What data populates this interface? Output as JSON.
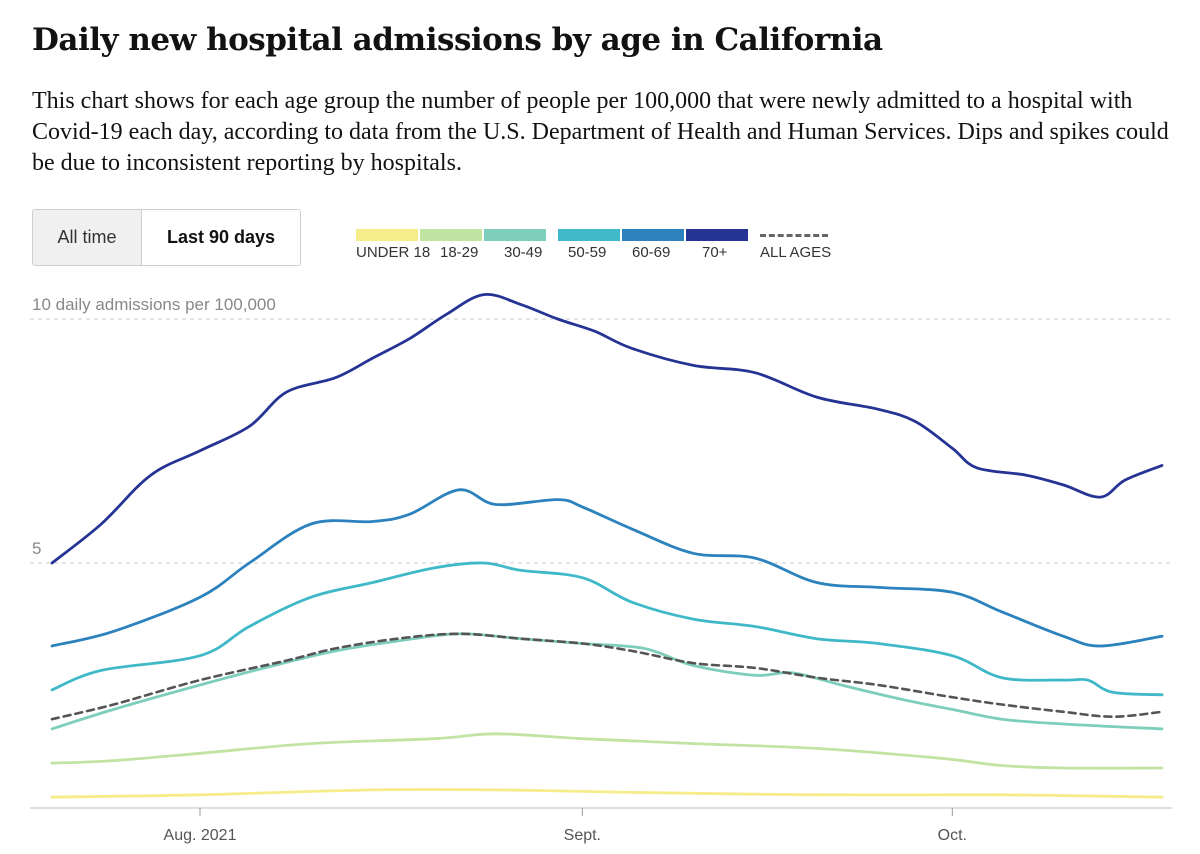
{
  "title": "Daily new hospital admissions by age in California",
  "subtitle": "This chart shows for each age group the number of people per 100,000 that were newly admitted to a hospital with Covid-19 each day, according to data from the U.S. Department of Health and Human Services. Dips and spikes could be due to inconsistent reporting by hospitals.",
  "toggle": {
    "all_time": "All time",
    "last_90": "Last 90 days",
    "selected": "last_90"
  },
  "chart_data": {
    "type": "line",
    "title": "Daily new hospital admissions by age in California",
    "ylabel_annotation": "10 daily admissions per 100,000",
    "y_ticks": [
      {
        "value": 10,
        "label": "10 daily admissions per 100,000"
      },
      {
        "value": 5,
        "label": "5"
      }
    ],
    "ylim": [
      0,
      10.8
    ],
    "x_range": [
      "2021-07-20",
      "2021-10-18"
    ],
    "x_ticks": [
      {
        "date": "2021-08-01",
        "label": "Aug. 2021"
      },
      {
        "date": "2021-09-01",
        "label": "Sept."
      },
      {
        "date": "2021-10-01",
        "label": "Oct."
      }
    ],
    "grid": "horizontal dashed",
    "legend_position": "top",
    "series": [
      {
        "name": "UNDER 18",
        "color": "#f7ec8a",
        "dashed": false,
        "points": [
          [
            "2021-07-20",
            0.2
          ],
          [
            "2021-08-01",
            0.25
          ],
          [
            "2021-08-15",
            0.35
          ],
          [
            "2021-08-25",
            0.35
          ],
          [
            "2021-09-05",
            0.3
          ],
          [
            "2021-09-20",
            0.25
          ],
          [
            "2021-10-05",
            0.25
          ],
          [
            "2021-10-18",
            0.2
          ]
        ]
      },
      {
        "name": "18-29",
        "color": "#c2e4a3",
        "dashed": false,
        "points": [
          [
            "2021-07-20",
            0.9
          ],
          [
            "2021-07-25",
            0.95
          ],
          [
            "2021-08-01",
            1.1
          ],
          [
            "2021-08-10",
            1.3
          ],
          [
            "2021-08-20",
            1.4
          ],
          [
            "2021-08-25",
            1.5
          ],
          [
            "2021-09-01",
            1.4
          ],
          [
            "2021-09-10",
            1.3
          ],
          [
            "2021-09-20",
            1.2
          ],
          [
            "2021-09-30",
            1.0
          ],
          [
            "2021-10-05",
            0.85
          ],
          [
            "2021-10-10",
            0.8
          ],
          [
            "2021-10-18",
            0.8
          ]
        ]
      },
      {
        "name": "30-49",
        "color": "#7dcebb",
        "dashed": false,
        "points": [
          [
            "2021-07-20",
            1.6
          ],
          [
            "2021-07-25",
            2.0
          ],
          [
            "2021-08-01",
            2.5
          ],
          [
            "2021-08-07",
            2.9
          ],
          [
            "2021-08-12",
            3.2
          ],
          [
            "2021-08-17",
            3.4
          ],
          [
            "2021-08-22",
            3.55
          ],
          [
            "2021-08-27",
            3.45
          ],
          [
            "2021-09-01",
            3.35
          ],
          [
            "2021-09-06",
            3.25
          ],
          [
            "2021-09-10",
            2.9
          ],
          [
            "2021-09-15",
            2.7
          ],
          [
            "2021-09-18",
            2.75
          ],
          [
            "2021-09-22",
            2.5
          ],
          [
            "2021-09-27",
            2.2
          ],
          [
            "2021-10-01",
            2.0
          ],
          [
            "2021-10-05",
            1.8
          ],
          [
            "2021-10-10",
            1.7
          ],
          [
            "2021-10-18",
            1.6
          ]
        ]
      },
      {
        "name": "50-59",
        "color": "#3fb8c8",
        "dashed": false,
        "points": [
          [
            "2021-07-20",
            2.4
          ],
          [
            "2021-07-24",
            2.8
          ],
          [
            "2021-08-01",
            3.1
          ],
          [
            "2021-08-05",
            3.7
          ],
          [
            "2021-08-10",
            4.3
          ],
          [
            "2021-08-15",
            4.6
          ],
          [
            "2021-08-20",
            4.9
          ],
          [
            "2021-08-24",
            5.0
          ],
          [
            "2021-08-27",
            4.85
          ],
          [
            "2021-09-01",
            4.7
          ],
          [
            "2021-09-05",
            4.2
          ],
          [
            "2021-09-10",
            3.85
          ],
          [
            "2021-09-15",
            3.7
          ],
          [
            "2021-09-20",
            3.45
          ],
          [
            "2021-09-25",
            3.35
          ],
          [
            "2021-10-01",
            3.1
          ],
          [
            "2021-10-05",
            2.65
          ],
          [
            "2021-10-10",
            2.6
          ],
          [
            "2021-10-12",
            2.6
          ],
          [
            "2021-10-14",
            2.35
          ],
          [
            "2021-10-18",
            2.3
          ]
        ]
      },
      {
        "name": "60-69",
        "color": "#2b82bd",
        "dashed": false,
        "points": [
          [
            "2021-07-20",
            3.3
          ],
          [
            "2021-07-25",
            3.6
          ],
          [
            "2021-08-01",
            4.3
          ],
          [
            "2021-08-05",
            5.0
          ],
          [
            "2021-08-10",
            5.8
          ],
          [
            "2021-08-15",
            5.85
          ],
          [
            "2021-08-18",
            6.0
          ],
          [
            "2021-08-22",
            6.5
          ],
          [
            "2021-08-25",
            6.2
          ],
          [
            "2021-08-30",
            6.3
          ],
          [
            "2021-09-01",
            6.15
          ],
          [
            "2021-09-05",
            5.7
          ],
          [
            "2021-09-10",
            5.2
          ],
          [
            "2021-09-15",
            5.1
          ],
          [
            "2021-09-20",
            4.6
          ],
          [
            "2021-09-25",
            4.5
          ],
          [
            "2021-10-01",
            4.4
          ],
          [
            "2021-10-05",
            4.0
          ],
          [
            "2021-10-10",
            3.5
          ],
          [
            "2021-10-13",
            3.3
          ],
          [
            "2021-10-18",
            3.5
          ]
        ]
      },
      {
        "name": "70+",
        "color": "#253494",
        "dashed": false,
        "points": [
          [
            "2021-07-20",
            5.0
          ],
          [
            "2021-07-24",
            5.8
          ],
          [
            "2021-07-28",
            6.8
          ],
          [
            "2021-08-01",
            7.3
          ],
          [
            "2021-08-05",
            7.8
          ],
          [
            "2021-08-08",
            8.5
          ],
          [
            "2021-08-12",
            8.8
          ],
          [
            "2021-08-15",
            9.2
          ],
          [
            "2021-08-18",
            9.6
          ],
          [
            "2021-08-21",
            10.1
          ],
          [
            "2021-08-24",
            10.5
          ],
          [
            "2021-08-27",
            10.3
          ],
          [
            "2021-08-30",
            10.0
          ],
          [
            "2021-09-02",
            9.75
          ],
          [
            "2021-09-05",
            9.4
          ],
          [
            "2021-09-10",
            9.05
          ],
          [
            "2021-09-15",
            8.9
          ],
          [
            "2021-09-20",
            8.4
          ],
          [
            "2021-09-25",
            8.15
          ],
          [
            "2021-09-28",
            7.9
          ],
          [
            "2021-10-01",
            7.35
          ],
          [
            "2021-10-03",
            6.95
          ],
          [
            "2021-10-07",
            6.8
          ],
          [
            "2021-10-10",
            6.6
          ],
          [
            "2021-10-13",
            6.35
          ],
          [
            "2021-10-15",
            6.7
          ],
          [
            "2021-10-18",
            7.0
          ]
        ]
      },
      {
        "name": "ALL AGES",
        "color": "#555555",
        "dashed": true,
        "points": [
          [
            "2021-07-20",
            1.8
          ],
          [
            "2021-07-25",
            2.1
          ],
          [
            "2021-08-01",
            2.6
          ],
          [
            "2021-08-08",
            3.0
          ],
          [
            "2021-08-12",
            3.25
          ],
          [
            "2021-08-17",
            3.45
          ],
          [
            "2021-08-22",
            3.55
          ],
          [
            "2021-08-27",
            3.45
          ],
          [
            "2021-09-01",
            3.35
          ],
          [
            "2021-09-05",
            3.2
          ],
          [
            "2021-09-10",
            2.95
          ],
          [
            "2021-09-15",
            2.85
          ],
          [
            "2021-09-20",
            2.65
          ],
          [
            "2021-09-25",
            2.5
          ],
          [
            "2021-10-01",
            2.25
          ],
          [
            "2021-10-05",
            2.1
          ],
          [
            "2021-10-10",
            1.95
          ],
          [
            "2021-10-14",
            1.85
          ],
          [
            "2021-10-18",
            1.95
          ]
        ]
      }
    ]
  }
}
